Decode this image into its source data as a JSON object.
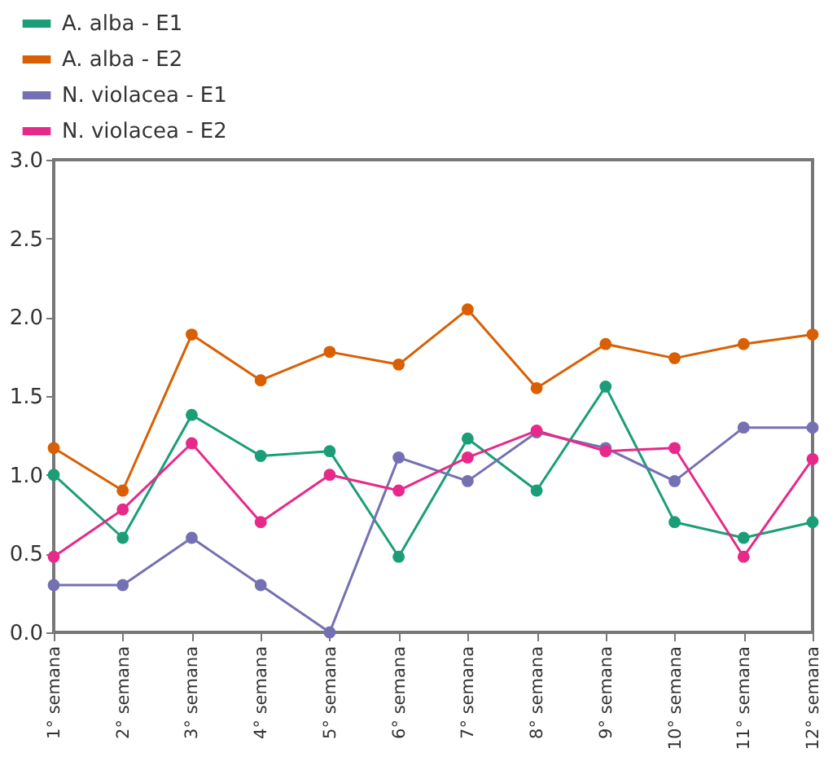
{
  "chart_data": {
    "type": "line",
    "categories": [
      "1° semana",
      "2° semana",
      "3° semana",
      "4° semana",
      "5° semana",
      "6° semana",
      "7° semana",
      "8° semana",
      "9° semana",
      "10° semana",
      "11° semana",
      "12° semana"
    ],
    "series": [
      {
        "name": "A. alba - E1",
        "color": "#1b9e77",
        "values": [
          1.0,
          0.6,
          1.38,
          1.12,
          1.15,
          0.48,
          1.23,
          0.9,
          1.56,
          0.7,
          0.6,
          0.7
        ]
      },
      {
        "name": "A. alba - E2",
        "color": "#d95f02",
        "values": [
          1.17,
          0.9,
          1.89,
          1.6,
          1.78,
          1.7,
          2.05,
          1.55,
          1.83,
          1.74,
          1.83,
          1.89
        ]
      },
      {
        "name": "N. violacea - E1",
        "color": "#7570b3",
        "values": [
          0.3,
          0.3,
          0.6,
          0.3,
          0.0,
          1.11,
          0.96,
          1.27,
          1.17,
          0.96,
          1.3,
          1.3
        ]
      },
      {
        "name": "N. violacea - E2",
        "color": "#e7298a",
        "values": [
          0.48,
          0.78,
          1.2,
          0.7,
          1.0,
          0.9,
          1.11,
          1.28,
          1.15,
          1.17,
          0.48,
          1.1
        ]
      }
    ],
    "ylim": [
      0,
      3
    ],
    "yticks": [
      {
        "value": 0,
        "label": "0.0"
      },
      0.5,
      {
        "value": 1,
        "label": "1.0"
      },
      1.5,
      {
        "value": 2,
        "label": "2.0"
      },
      2.5,
      {
        "value": 3,
        "label": "3.0"
      }
    ],
    "grid": false,
    "legend": "top left",
    "marker": "circle",
    "line_style": "solid"
  }
}
